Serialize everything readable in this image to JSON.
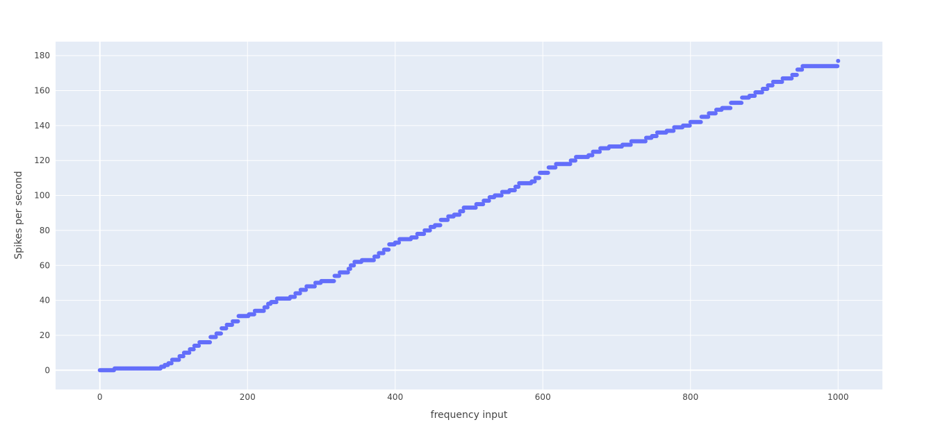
{
  "chart_data": {
    "type": "scatter",
    "xlabel": "frequency input",
    "ylabel": "Spikes per second",
    "xlim": [
      -60,
      1060
    ],
    "ylim": [
      -11,
      188
    ],
    "x_ticks": [
      0,
      200,
      400,
      600,
      800,
      1000
    ],
    "y_ticks": [
      0,
      20,
      40,
      60,
      80,
      100,
      120,
      140,
      160,
      180
    ],
    "grid": true,
    "colors": {
      "marker": "#636efa",
      "plot_bg": "#e5ecf6",
      "grid": "#ffffff",
      "text": "#444444"
    },
    "series": [
      {
        "steps": [
          [
            0,
            0
          ],
          [
            20,
            1
          ],
          [
            83,
            2
          ],
          [
            88,
            3
          ],
          [
            93,
            4
          ],
          [
            98,
            6
          ],
          [
            108,
            8
          ],
          [
            114,
            10
          ],
          [
            122,
            12
          ],
          [
            128,
            14
          ],
          [
            135,
            16
          ],
          [
            150,
            19
          ],
          [
            158,
            21
          ],
          [
            165,
            24
          ],
          [
            172,
            26
          ],
          [
            180,
            28
          ],
          [
            188,
            31
          ],
          [
            202,
            32
          ],
          [
            210,
            34
          ],
          [
            223,
            36
          ],
          [
            228,
            38
          ],
          [
            232,
            39
          ],
          [
            240,
            41
          ],
          [
            258,
            42
          ],
          [
            265,
            44
          ],
          [
            272,
            46
          ],
          [
            280,
            48
          ],
          [
            292,
            50
          ],
          [
            300,
            51
          ],
          [
            318,
            54
          ],
          [
            325,
            56
          ],
          [
            337,
            58
          ],
          [
            340,
            60
          ],
          [
            345,
            62
          ],
          [
            355,
            63
          ],
          [
            372,
            65
          ],
          [
            378,
            67
          ],
          [
            385,
            69
          ],
          [
            392,
            72
          ],
          [
            400,
            73
          ],
          [
            406,
            75
          ],
          [
            422,
            76
          ],
          [
            430,
            78
          ],
          [
            440,
            80
          ],
          [
            448,
            82
          ],
          [
            454,
            83
          ],
          [
            462,
            86
          ],
          [
            472,
            88
          ],
          [
            480,
            89
          ],
          [
            488,
            91
          ],
          [
            493,
            93
          ],
          [
            510,
            95
          ],
          [
            520,
            97
          ],
          [
            528,
            99
          ],
          [
            535,
            100
          ],
          [
            545,
            102
          ],
          [
            555,
            103
          ],
          [
            563,
            105
          ],
          [
            568,
            107
          ],
          [
            585,
            108
          ],
          [
            590,
            110
          ],
          [
            596,
            113
          ],
          [
            608,
            116
          ],
          [
            618,
            118
          ],
          [
            638,
            120
          ],
          [
            645,
            122
          ],
          [
            662,
            123
          ],
          [
            668,
            125
          ],
          [
            678,
            127
          ],
          [
            690,
            128
          ],
          [
            708,
            129
          ],
          [
            720,
            131
          ],
          [
            740,
            133
          ],
          [
            748,
            134
          ],
          [
            755,
            136
          ],
          [
            768,
            137
          ],
          [
            778,
            139
          ],
          [
            790,
            140
          ],
          [
            800,
            142
          ],
          [
            815,
            145
          ],
          [
            825,
            147
          ],
          [
            835,
            149
          ],
          [
            843,
            150
          ],
          [
            855,
            153
          ],
          [
            870,
            156
          ],
          [
            880,
            157
          ],
          [
            888,
            159
          ],
          [
            898,
            161
          ],
          [
            905,
            163
          ],
          [
            912,
            165
          ],
          [
            925,
            167
          ],
          [
            938,
            169
          ],
          [
            945,
            172
          ],
          [
            952,
            174
          ],
          [
            1000,
            177
          ]
        ]
      }
    ]
  }
}
